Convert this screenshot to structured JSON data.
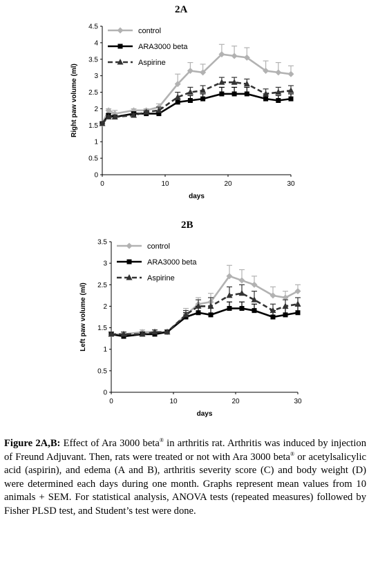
{
  "colors": {
    "control": "#b2b2b2",
    "ara": "#000000",
    "aspirine": "#333333"
  },
  "chart_data": [
    {
      "type": "line",
      "title": "2A",
      "xlabel": "days",
      "ylabel": "Right paw volume (ml)",
      "xlim": [
        0,
        30
      ],
      "ylim": [
        0,
        4.5
      ],
      "xticks": [
        "0",
        "10",
        "20",
        "30"
      ],
      "yticks": [
        "0",
        "0.5",
        "1",
        "1.5",
        "2",
        "2.5",
        "3",
        "3.5",
        "4",
        "4.5"
      ],
      "legend": "top-left",
      "grid": false,
      "x": [
        0,
        1,
        2,
        5,
        7,
        9,
        12,
        14,
        16,
        19,
        21,
        23,
        26,
        28,
        30
      ],
      "series": [
        {
          "name": "control",
          "key": "control",
          "marker": "diamond",
          "dashed": false,
          "values": [
            1.55,
            1.95,
            1.85,
            1.95,
            1.95,
            2.05,
            2.75,
            3.15,
            3.1,
            3.65,
            3.6,
            3.55,
            3.15,
            3.1,
            3.05
          ],
          "err": [
            0.05,
            0.05,
            0.1,
            0.05,
            0.05,
            0.1,
            0.3,
            0.25,
            0.25,
            0.3,
            0.3,
            0.3,
            0.3,
            0.3,
            0.25
          ]
        },
        {
          "name": "ARA3000 beta",
          "key": "ara",
          "marker": "square",
          "dashed": false,
          "values": [
            1.55,
            1.8,
            1.75,
            1.85,
            1.85,
            1.85,
            2.2,
            2.25,
            2.3,
            2.45,
            2.45,
            2.45,
            2.3,
            2.25,
            2.3
          ],
          "err": [
            0.05,
            0.05,
            0.05,
            0.05,
            0.05,
            0.05,
            0.1,
            0.15,
            0.15,
            0.2,
            0.2,
            0.2,
            0.15,
            0.15,
            0.15
          ]
        },
        {
          "name": "Aspirine",
          "key": "aspirine",
          "marker": "triangle",
          "dashed": true,
          "values": [
            1.55,
            1.75,
            1.75,
            1.8,
            1.9,
            1.95,
            2.35,
            2.5,
            2.55,
            2.8,
            2.8,
            2.75,
            2.45,
            2.5,
            2.55
          ],
          "err": [
            0.05,
            0.05,
            0.05,
            0.05,
            0.05,
            0.1,
            0.15,
            0.15,
            0.15,
            0.15,
            0.15,
            0.15,
            0.15,
            0.15,
            0.15
          ]
        }
      ]
    },
    {
      "type": "line",
      "title": "2B",
      "xlabel": "days",
      "ylabel": "Left paw volume (ml)",
      "xlim": [
        0,
        30
      ],
      "ylim": [
        0,
        3.5
      ],
      "xticks": [
        "0",
        "10",
        "20",
        "30"
      ],
      "yticks": [
        "0",
        "0.5",
        "1",
        "1.5",
        "2",
        "2.5",
        "3",
        "3.5"
      ],
      "legend": "top-left",
      "grid": false,
      "x": [
        0,
        2,
        5,
        7,
        9,
        12,
        14,
        16,
        19,
        21,
        23,
        26,
        28,
        30
      ],
      "series": [
        {
          "name": "control",
          "key": "control",
          "marker": "diamond",
          "dashed": false,
          "values": [
            1.35,
            1.35,
            1.4,
            1.4,
            1.4,
            1.8,
            2.05,
            2.1,
            2.7,
            2.6,
            2.5,
            2.25,
            2.2,
            2.35
          ],
          "err": [
            0.05,
            0.05,
            0.05,
            0.05,
            0.05,
            0.15,
            0.15,
            0.2,
            0.25,
            0.25,
            0.2,
            0.2,
            0.15,
            0.15
          ]
        },
        {
          "name": "ARA3000 beta",
          "key": "ara",
          "marker": "square",
          "dashed": false,
          "values": [
            1.35,
            1.3,
            1.35,
            1.35,
            1.4,
            1.75,
            1.85,
            1.8,
            1.95,
            1.95,
            1.9,
            1.75,
            1.8,
            1.85
          ],
          "err": [
            0.05,
            0.05,
            0.05,
            0.05,
            0.05,
            0.1,
            0.15,
            0.15,
            0.15,
            0.15,
            0.15,
            0.15,
            0.15,
            0.15
          ]
        },
        {
          "name": "Aspirine",
          "key": "aspirine",
          "marker": "triangle",
          "dashed": true,
          "values": [
            1.35,
            1.35,
            1.35,
            1.4,
            1.4,
            1.8,
            2.0,
            2.0,
            2.25,
            2.3,
            2.15,
            1.9,
            2.0,
            2.05
          ],
          "err": [
            0.05,
            0.05,
            0.05,
            0.05,
            0.05,
            0.1,
            0.15,
            0.2,
            0.2,
            0.2,
            0.2,
            0.15,
            0.15,
            0.15
          ]
        }
      ]
    }
  ],
  "caption": {
    "label": "Figure 2A,B:",
    "s1": " Effect of Ara 3000 beta",
    "reg": "®",
    "s2": " in arthritis rat. Arthritis was induced by injection of Freund Adjuvant. Then, rats were treated or not with Ara 3000 beta",
    "s3": " or acetylsalicylic acid (aspirin), and edema (A and B), arthritis severity score (C) and body weight (D) were determined each days during one month. Graphs represent mean values from 10 animals + SEM. For statistical analysis, ANOVA tests (repeated measures) followed by Fisher PLSD test, and Student’s test were done."
  }
}
